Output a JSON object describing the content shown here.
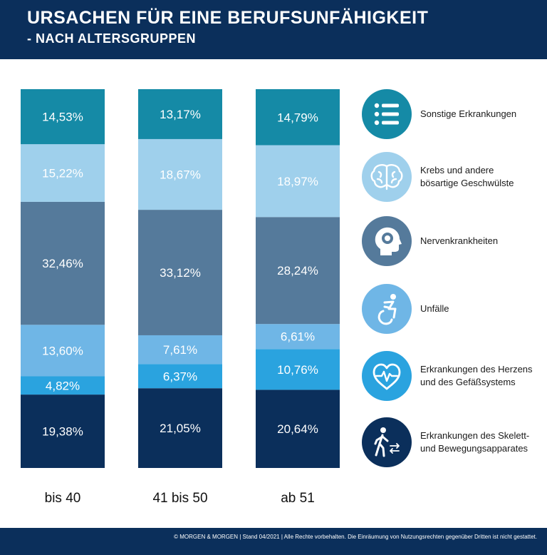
{
  "header": {
    "title": "URSACHEN FÜR EINE BERUFSUNFÄHIGKEIT",
    "subtitle": "- NACH ALTERSGRUPPEN"
  },
  "chart_data": {
    "type": "bar",
    "stacked": true,
    "normalized": true,
    "categories": [
      "bis 40",
      "41 bis 50",
      "ab 51"
    ],
    "series": [
      {
        "name": "Erkrankungen des Skelett- und Bewegungsapparates",
        "color": "#0b2f5b",
        "values": [
          19.38,
          21.05,
          20.64
        ],
        "labels": [
          "19,38%",
          "21,05%",
          "20,64%"
        ]
      },
      {
        "name": "Erkrankungen des Herzens und des Gefäßsystems",
        "color": "#2aa3df",
        "values": [
          4.82,
          6.37,
          10.76
        ],
        "labels": [
          "4,82%",
          "6,37%",
          "10,76%"
        ]
      },
      {
        "name": "Unfälle",
        "color": "#6fb6e6",
        "values": [
          13.6,
          7.61,
          6.61
        ],
        "labels": [
          "13,60%",
          "7,61%",
          "6,61%"
        ]
      },
      {
        "name": "Nervenkrankheiten",
        "color": "#557a9b",
        "values": [
          32.46,
          33.12,
          28.24
        ],
        "labels": [
          "32,46%",
          "33,12%",
          "28,24%"
        ]
      },
      {
        "name": "Krebs und andere bösartige Geschwülste",
        "color": "#9fd0ec",
        "values": [
          15.22,
          18.67,
          18.97
        ],
        "labels": [
          "15,22%",
          "18,67%",
          "18,97%"
        ]
      },
      {
        "name": "Sonstige Erkrankungen",
        "color": "#158aa6",
        "values": [
          14.53,
          13.17,
          14.79
        ],
        "labels": [
          "14,53%",
          "13,17%",
          "14,79%"
        ]
      }
    ]
  },
  "legend": [
    {
      "lines": [
        "Sonstige Erkrankungen"
      ],
      "icon": "list-icon",
      "color": "#158aa6"
    },
    {
      "lines": [
        "Krebs und andere",
        "bösartige Geschwülste"
      ],
      "icon": "brain-icon",
      "color": "#9fd0ec"
    },
    {
      "lines": [
        "Nervenkrankheiten"
      ],
      "icon": "head-icon",
      "color": "#557a9b"
    },
    {
      "lines": [
        "Unfälle"
      ],
      "icon": "wheelchair-icon",
      "color": "#6fb6e6"
    },
    {
      "lines": [
        "Erkrankungen des Herzens",
        "und des Gefäßsystems"
      ],
      "icon": "heart-pulse-icon",
      "color": "#2aa3df"
    },
    {
      "lines": [
        "Erkrankungen des Skelett-",
        "und Bewegungsapparates"
      ],
      "icon": "walking-person-icon",
      "color": "#0b2f5b"
    }
  ],
  "footer": {
    "text": "© MORGEN & MORGEN | Stand 04/2021 | Alle Rechte vorbehalten. Die Einräumung von Nutzungsrechten gegenüber Dritten ist nicht gestattet."
  }
}
